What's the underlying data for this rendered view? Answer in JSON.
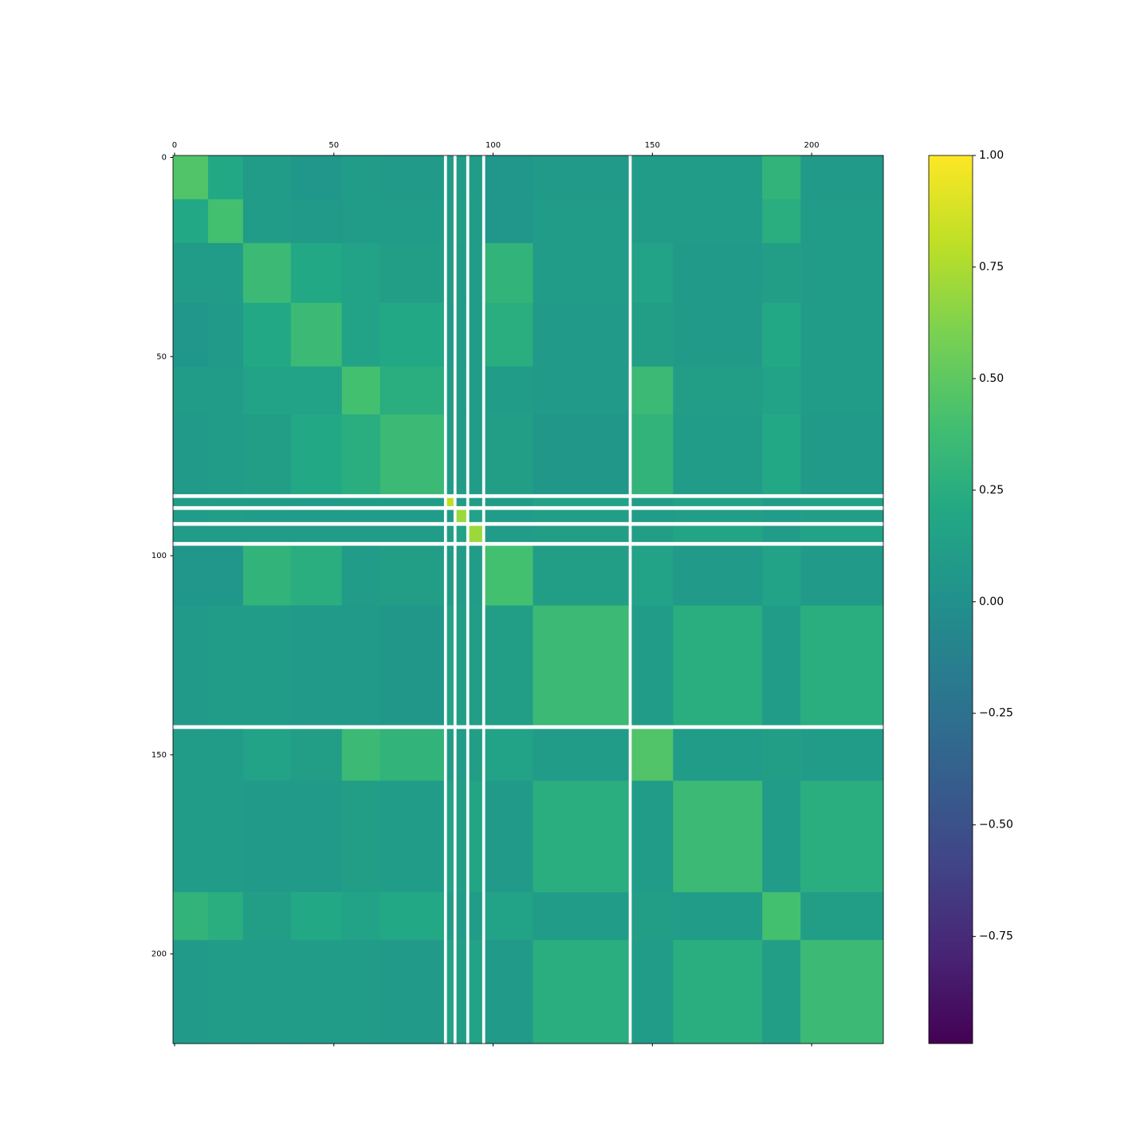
{
  "chart_data": {
    "type": "heatmap",
    "cmap": "viridis",
    "xbins": [
      -0.5,
      10.5,
      21.5,
      36.5,
      52.5,
      64.5,
      84.5,
      85.5,
      87.5,
      88.5,
      91.5,
      92.5,
      96.5,
      97.5,
      112.5,
      142.5,
      143.5,
      156.5,
      184.5,
      196.5,
      222.5
    ],
    "ybins": [
      -0.5,
      10.5,
      21.5,
      36.5,
      52.5,
      64.5,
      84.5,
      85.5,
      87.5,
      88.5,
      91.5,
      92.5,
      96.5,
      97.5,
      112.5,
      142.5,
      143.5,
      156.5,
      184.5,
      196.5,
      222.5
    ],
    "values": [
      [
        0.45,
        0.2,
        0.1,
        0.05,
        0.1,
        0.08,
        null,
        0.1,
        null,
        0.1,
        null,
        0.1,
        null,
        0.05,
        0.08,
        null,
        0.1,
        0.1,
        0.3,
        0.08
      ],
      [
        0.2,
        0.4,
        0.1,
        0.08,
        0.1,
        0.1,
        null,
        0.1,
        null,
        0.12,
        null,
        0.1,
        null,
        0.05,
        0.1,
        null,
        0.1,
        0.1,
        0.25,
        0.1
      ],
      [
        0.1,
        0.1,
        0.35,
        0.2,
        0.15,
        0.12,
        null,
        0.1,
        null,
        0.1,
        null,
        0.1,
        null,
        0.3,
        0.1,
        null,
        0.15,
        0.08,
        0.12,
        0.1
      ],
      [
        0.05,
        0.08,
        0.2,
        0.35,
        0.15,
        0.2,
        null,
        0.08,
        null,
        0.1,
        null,
        0.1,
        null,
        0.25,
        0.08,
        null,
        0.12,
        0.08,
        0.2,
        0.1
      ],
      [
        0.1,
        0.1,
        0.15,
        0.15,
        0.4,
        0.25,
        null,
        0.1,
        null,
        0.1,
        null,
        0.1,
        null,
        0.1,
        0.08,
        null,
        0.35,
        0.12,
        0.15,
        0.1
      ],
      [
        0.08,
        0.1,
        0.12,
        0.2,
        0.25,
        0.35,
        null,
        0.1,
        null,
        0.1,
        null,
        0.1,
        null,
        0.12,
        0.06,
        null,
        0.3,
        0.1,
        0.2,
        0.08
      ],
      [
        null,
        null,
        null,
        null,
        null,
        null,
        null,
        null,
        null,
        null,
        null,
        null,
        null,
        null,
        null,
        null,
        null,
        null,
        null,
        null
      ],
      [
        0.1,
        0.1,
        0.1,
        0.08,
        0.1,
        0.1,
        null,
        0.8,
        null,
        0.1,
        null,
        0.12,
        null,
        0.1,
        0.15,
        null,
        0.1,
        0.15,
        0.1,
        0.15
      ],
      [
        null,
        null,
        null,
        null,
        null,
        null,
        null,
        null,
        null,
        null,
        null,
        null,
        null,
        null,
        null,
        null,
        null,
        null,
        null,
        null
      ],
      [
        0.1,
        0.12,
        0.1,
        0.1,
        0.1,
        0.1,
        null,
        0.1,
        null,
        0.7,
        null,
        0.15,
        null,
        0.1,
        0.12,
        null,
        0.1,
        0.12,
        0.1,
        0.12
      ],
      [
        null,
        null,
        null,
        null,
        null,
        null,
        null,
        null,
        null,
        null,
        null,
        null,
        null,
        null,
        null,
        null,
        null,
        null,
        null,
        null
      ],
      [
        0.1,
        0.1,
        0.1,
        0.1,
        0.1,
        0.1,
        null,
        0.12,
        null,
        0.15,
        null,
        0.7,
        null,
        0.1,
        0.12,
        null,
        0.12,
        0.18,
        0.1,
        0.15
      ],
      [
        null,
        null,
        null,
        null,
        null,
        null,
        null,
        null,
        null,
        null,
        null,
        null,
        null,
        null,
        null,
        null,
        null,
        null,
        null,
        null
      ],
      [
        0.05,
        0.05,
        0.3,
        0.25,
        0.1,
        0.12,
        null,
        0.1,
        null,
        0.1,
        null,
        0.1,
        null,
        0.4,
        0.12,
        null,
        0.15,
        0.08,
        0.15,
        0.08
      ],
      [
        0.08,
        0.1,
        0.1,
        0.08,
        0.08,
        0.06,
        null,
        0.15,
        null,
        0.12,
        null,
        0.12,
        null,
        0.12,
        0.35,
        null,
        0.1,
        0.25,
        0.1,
        0.25
      ],
      [
        null,
        null,
        null,
        null,
        null,
        null,
        null,
        null,
        null,
        null,
        null,
        null,
        null,
        null,
        null,
        null,
        null,
        null,
        null,
        null
      ],
      [
        0.1,
        0.1,
        0.15,
        0.12,
        0.35,
        0.3,
        null,
        0.1,
        null,
        0.1,
        null,
        0.12,
        null,
        0.15,
        0.1,
        null,
        0.45,
        0.1,
        0.12,
        0.1
      ],
      [
        0.1,
        0.1,
        0.08,
        0.08,
        0.12,
        0.1,
        null,
        0.15,
        null,
        0.12,
        null,
        0.18,
        null,
        0.08,
        0.25,
        null,
        0.1,
        0.35,
        0.1,
        0.25
      ],
      [
        0.3,
        0.25,
        0.12,
        0.2,
        0.15,
        0.2,
        null,
        0.1,
        null,
        0.1,
        null,
        0.1,
        null,
        0.15,
        0.1,
        null,
        0.12,
        0.1,
        0.4,
        0.12
      ],
      [
        0.08,
        0.1,
        0.1,
        0.1,
        0.1,
        0.08,
        null,
        0.15,
        null,
        0.12,
        null,
        0.15,
        null,
        0.08,
        0.25,
        null,
        0.1,
        0.25,
        0.12,
        0.35
      ]
    ],
    "xlim": [
      -0.5,
      222.5
    ],
    "ylim": [
      222.5,
      -0.5
    ],
    "xticks": [
      0,
      50,
      100,
      150,
      200
    ],
    "yticks": [
      0,
      50,
      100,
      150,
      200
    ],
    "clim": [
      -0.99,
      1
    ],
    "cticks": [
      {
        "value": -0.75,
        "label": "−0.75"
      },
      {
        "value": -0.5,
        "label": "−0.50"
      },
      {
        "value": -0.25,
        "label": "−0.25"
      },
      {
        "value": 0,
        "label": "0.00"
      },
      {
        "value": 0.25,
        "label": "0.25"
      },
      {
        "value": 0.5,
        "label": "0.50"
      },
      {
        "value": 0.75,
        "label": "0.75"
      },
      {
        "value": 1,
        "label": "1.00"
      }
    ]
  }
}
